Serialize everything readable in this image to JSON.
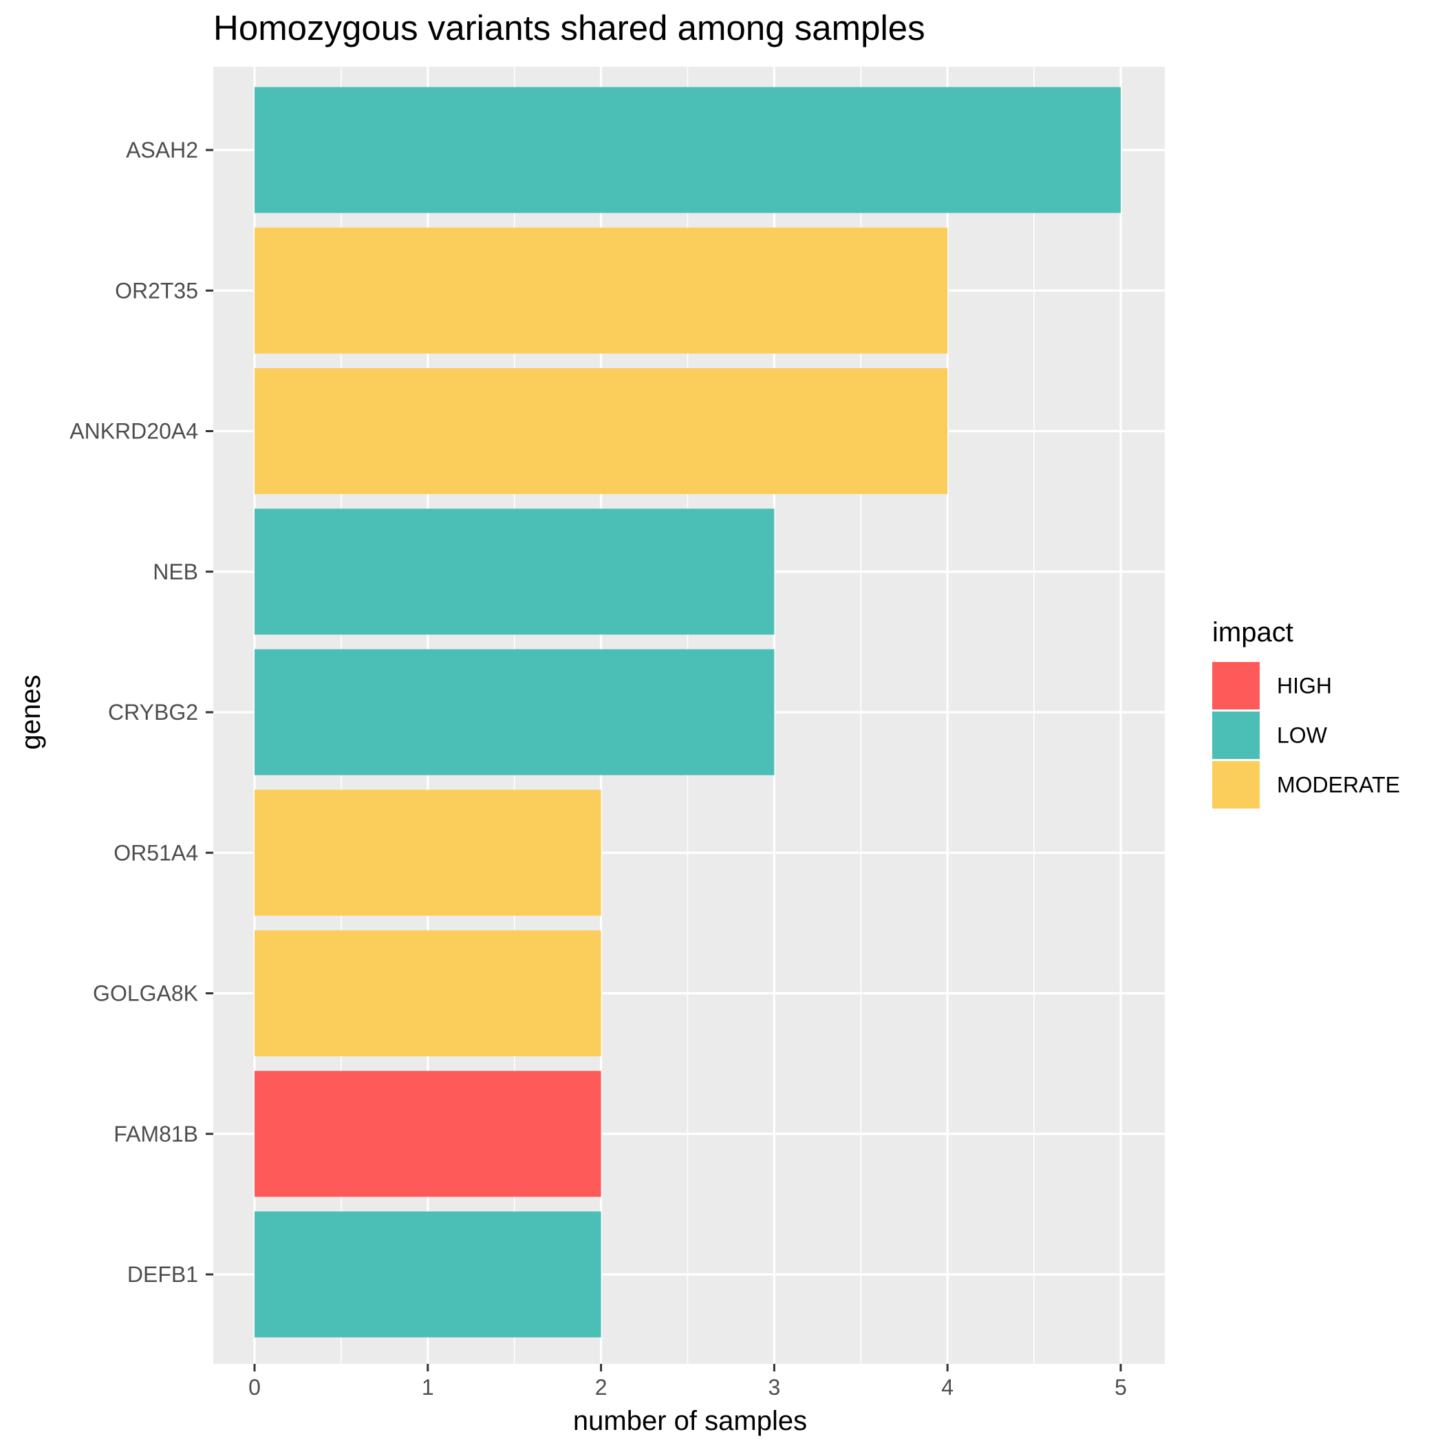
{
  "chart_data": {
    "type": "bar",
    "orientation": "horizontal",
    "title": "Homozygous variants shared among samples",
    "xlabel": "number of samples",
    "ylabel": "genes",
    "xlim": [
      0,
      5
    ],
    "x_ticks": [
      "0",
      "1",
      "2",
      "3",
      "4",
      "5"
    ],
    "categories": [
      "ASAH2",
      "OR2T35",
      "ANKRD20A4",
      "NEB",
      "CRYBG2",
      "OR51A4",
      "GOLGA8K",
      "FAM81B",
      "DEFB1"
    ],
    "values": [
      5,
      4,
      4,
      3,
      3,
      2,
      2,
      2,
      2
    ],
    "impact": [
      "LOW",
      "MODERATE",
      "MODERATE",
      "LOW",
      "LOW",
      "MODERATE",
      "MODERATE",
      "HIGH",
      "LOW"
    ],
    "legend": {
      "title": "impact",
      "placement": "right",
      "entries": [
        {
          "label": "HIGH",
          "color": "#FF5A5A"
        },
        {
          "label": "LOW",
          "color": "#4BBEB6"
        },
        {
          "label": "MODERATE",
          "color": "#FBCE5B"
        }
      ]
    },
    "grid": true,
    "panel_background": "#EBEBEB",
    "grid_color": "#FFFFFF"
  }
}
